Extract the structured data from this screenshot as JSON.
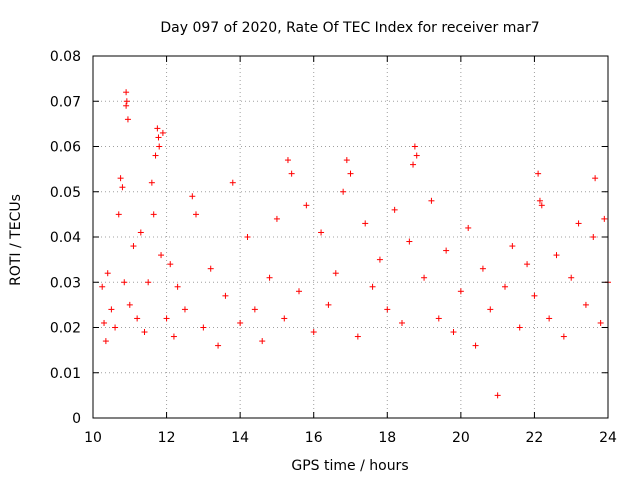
{
  "chart_data": {
    "type": "scatter",
    "title": "Day 097 of 2020, Rate Of TEC Index for receiver mar7",
    "xlabel": "GPS time / hours",
    "ylabel": "ROTI / TECUs",
    "xlim": [
      10,
      24
    ],
    "ylim": [
      0,
      0.08
    ],
    "xticks": [
      10,
      12,
      14,
      16,
      18,
      20,
      22,
      24
    ],
    "xtick_labels": [
      "10",
      "12",
      "14",
      "16",
      "18",
      "20",
      "22",
      "24"
    ],
    "yticks": [
      0,
      0.01,
      0.02,
      0.03,
      0.04,
      0.05,
      0.06,
      0.07,
      0.08
    ],
    "ytick_labels": [
      "0",
      "0.01",
      "0.02",
      "0.03",
      "0.04",
      "0.05",
      "0.06",
      "0.07",
      "0.08"
    ],
    "grid": true,
    "marker": "+",
    "marker_color": "#ff0000",
    "series": [
      {
        "name": "ROTI",
        "color": "#ff0000",
        "x": [
          10.25,
          10.3,
          10.35,
          10.4,
          10.5,
          10.6,
          10.7,
          10.75,
          10.8,
          10.85,
          10.9,
          10.9,
          10.92,
          10.95,
          11.0,
          11.1,
          11.2,
          11.3,
          11.4,
          11.5,
          11.6,
          11.65,
          11.7,
          11.75,
          11.78,
          11.8,
          11.85,
          11.9,
          12.0,
          12.1,
          12.2,
          12.3,
          12.5,
          12.7,
          12.8,
          13.0,
          13.2,
          13.4,
          13.6,
          13.8,
          14.0,
          14.2,
          14.4,
          14.6,
          14.8,
          15.0,
          15.2,
          15.3,
          15.4,
          15.6,
          15.8,
          16.0,
          16.2,
          16.4,
          16.6,
          16.8,
          16.9,
          17.0,
          17.2,
          17.4,
          17.6,
          17.8,
          18.0,
          18.2,
          18.4,
          18.6,
          18.7,
          18.75,
          18.8,
          19.0,
          19.2,
          19.4,
          19.6,
          19.8,
          20.0,
          20.2,
          20.4,
          20.6,
          20.8,
          21.0,
          21.2,
          21.4,
          21.6,
          21.8,
          22.0,
          22.1,
          22.15,
          22.2,
          22.4,
          22.6,
          22.8,
          23.0,
          23.2,
          23.4,
          23.6,
          23.65,
          23.8,
          23.9,
          24.0
        ],
        "y": [
          0.029,
          0.021,
          0.017,
          0.032,
          0.024,
          0.02,
          0.045,
          0.053,
          0.051,
          0.03,
          0.069,
          0.072,
          0.07,
          0.066,
          0.025,
          0.038,
          0.022,
          0.041,
          0.019,
          0.03,
          0.052,
          0.045,
          0.058,
          0.064,
          0.062,
          0.06,
          0.036,
          0.063,
          0.022,
          0.034,
          0.018,
          0.029,
          0.024,
          0.049,
          0.045,
          0.02,
          0.033,
          0.016,
          0.027,
          0.052,
          0.021,
          0.04,
          0.024,
          0.017,
          0.031,
          0.044,
          0.022,
          0.057,
          0.054,
          0.028,
          0.047,
          0.019,
          0.041,
          0.025,
          0.032,
          0.05,
          0.057,
          0.054,
          0.018,
          0.043,
          0.029,
          0.035,
          0.024,
          0.046,
          0.021,
          0.039,
          0.056,
          0.06,
          0.058,
          0.031,
          0.048,
          0.022,
          0.037,
          0.019,
          0.028,
          0.042,
          0.016,
          0.033,
          0.024,
          0.005,
          0.029,
          0.038,
          0.02,
          0.034,
          0.027,
          0.054,
          0.048,
          0.047,
          0.022,
          0.036,
          0.018,
          0.031,
          0.043,
          0.025,
          0.04,
          0.053,
          0.021,
          0.044,
          0.03
        ]
      }
    ]
  }
}
